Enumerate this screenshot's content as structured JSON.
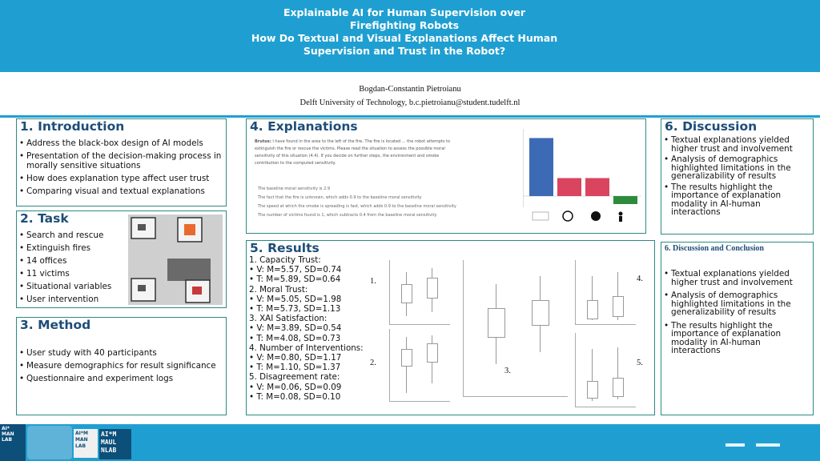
{
  "header": {
    "title_line1": "Explainable AI for Human Supervision over",
    "title_line2": "Firefighting Robots",
    "subtitle_line1": "How Do Textual and Visual Explanations Affect Human",
    "subtitle_line2": "Supervision and Trust in the Robot?"
  },
  "author": {
    "name": "Bogdan-Constantin Pietroianu",
    "affiliation": "Delft University of Technology, b.c.pietroianu@student.tudelft.nl"
  },
  "introduction": {
    "heading": "1. Introduction",
    "bullets": [
      "Address the black-box design of AI models",
      "Presentation of the decision-making process in morally sensitive situations",
      "How does explanation type affect user trust",
      "Comparing visual and textual explanations"
    ]
  },
  "task": {
    "heading": "2. Task",
    "bullets": [
      "Search and rescue",
      "Extinguish fires",
      "14 offices",
      "11 victims",
      "Situational variables",
      "User intervention"
    ]
  },
  "method": {
    "heading": "3. Method",
    "bullets": [
      "User study with 40 participants",
      "Measure demographics for result significance",
      "Questionnaire and experiment logs"
    ]
  },
  "explanations": {
    "heading": "4. Explanations",
    "paragraph_label": "Brutus:",
    "paragraph_line1": "I have found   in the area to the left of the fire. The fire is located ... the robot attempts to",
    "paragraph_line2": "extinguish the fire or rescue the victims. Please read the situation to assess the possible moral",
    "paragraph_line3": "sensitivity of this situation (4.4). If you decide on further steps, the environment and smoke",
    "paragraph_line4": "contribution to the computed sensitivity.",
    "list": [
      "The baseline moral sensitivity is 2.9",
      "The fact that the fire is unknown, which adds 0.9 to the baseline moral sensitivity",
      "The speed at which the smoke is spreading is fast, which adds 0.9 to the baseline moral sensitivity",
      "The number of victims found is 1, which subtracts 0.4 from the baseline moral sensitivity"
    ]
  },
  "results": {
    "heading": "5. Results",
    "lines": [
      "1. Capacity Trust:",
      "    V: M=5.57, SD=0.74",
      "    T: M=5.89, SD=0.64",
      "2. Moral Trust:",
      "    V: M=5.05, SD=1.98",
      "    T: M=5.73, SD=1.13",
      "3. XAI Satisfaction:",
      "    V: M=3.89, SD=0.54",
      "    T: M=4.08, SD=0.73",
      "4. Number of Interventions:",
      "    V: M=0.80, SD=1.17",
      "    T: M=1.10, SD=1.37",
      "5. Disagreement rate:",
      "    V: M=0.06, SD=0.09",
      "    T: M=0.08, SD=0.10"
    ],
    "plot_labels": [
      "1.",
      "2.",
      "3.",
      "4.",
      "5."
    ]
  },
  "discussion": {
    "heading": "6. Discussion",
    "bullets": [
      "Textual explanations yielded higher trust and involvement",
      "Analysis of demographics highlighted limitations in the generalizability of results",
      "The results highlight the importance of explanation modality in AI-human interactions"
    ]
  },
  "conclusion": {
    "heading": "6. Discussion and Conclusion",
    "bullets": [
      "Textual explanations yielded higher trust and involvement",
      "Analysis of demographics highlighted limitations in the generalizability of results",
      "The results highlight the importance of explanation modality in AI-human interactions"
    ]
  },
  "footer": {
    "logo_lines": [
      "AI*",
      "MAN",
      "LAB"
    ],
    "logo2_lines": [
      "AI*M",
      "MAN",
      "LAB"
    ],
    "logo3_lines": [
      "AI*M",
      "MAUL",
      "NLAB"
    ]
  },
  "chart_data": {
    "type": "bar",
    "categories": [
      "",
      "",
      "",
      ""
    ],
    "values": [
      2.9,
      0.9,
      0.9,
      -0.4
    ],
    "colors": [
      "#3d6ab4",
      "#d9455f",
      "#d9455f",
      "#2e8b3d"
    ]
  }
}
